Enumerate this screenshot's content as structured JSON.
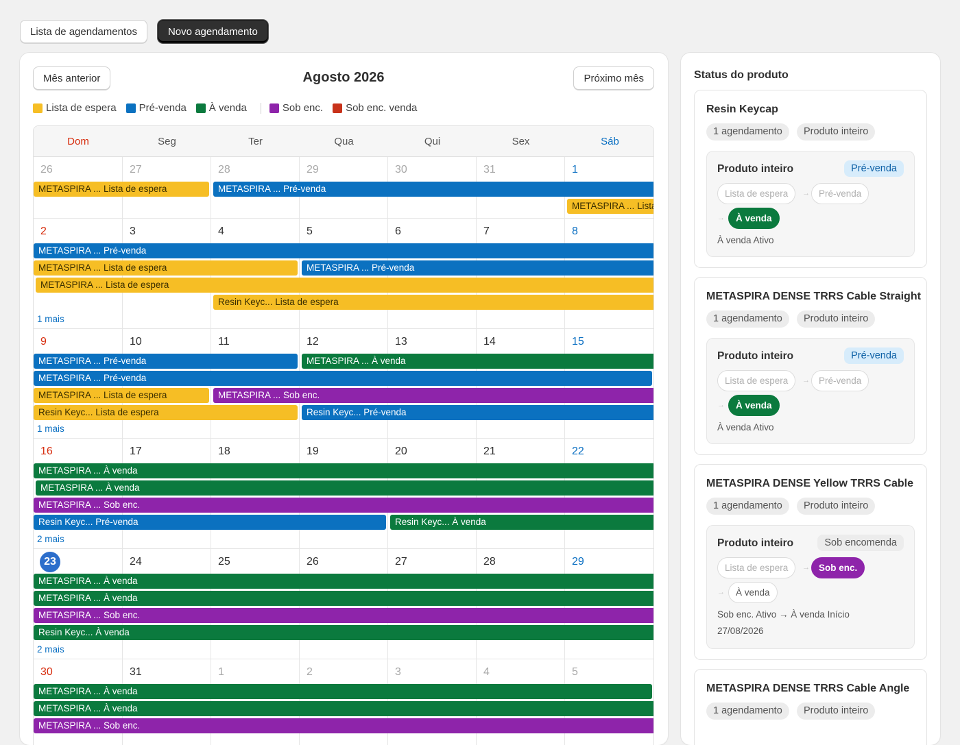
{
  "toolbar": {
    "list_label": "Lista de agendamentos",
    "new_label": "Novo agendamento"
  },
  "calendar": {
    "prev_label": "Mês anterior",
    "next_label": "Próximo mês",
    "month_title": "Agosto 2026",
    "legend": [
      {
        "label": "Lista de espera",
        "color": "#f6be25"
      },
      {
        "label": "Pré-venda",
        "color": "#0b71c0"
      },
      {
        "label": "À venda",
        "color": "#0b7a3e"
      },
      {
        "label": "Sob enc.",
        "color": "#8e24aa"
      },
      {
        "label": "Sob enc. venda",
        "color": "#c8321a"
      }
    ],
    "weekdays": [
      "Dom",
      "Seg",
      "Ter",
      "Qua",
      "Qui",
      "Sex",
      "Sáb"
    ],
    "weeks": [
      {
        "days": [
          {
            "n": "26",
            "muted": true
          },
          {
            "n": "27",
            "muted": true
          },
          {
            "n": "28",
            "muted": true
          },
          {
            "n": "29",
            "muted": true
          },
          {
            "n": "30",
            "muted": true
          },
          {
            "n": "31",
            "muted": true
          },
          {
            "n": "1"
          }
        ],
        "events": [
          {
            "label": "METASPIRA ... Lista de espera",
            "status": "espera"
          },
          {
            "label": "METASPIRA ... Pré-venda",
            "status": "prevenda"
          },
          {
            "label": "METASPIRA ... Lista de espera",
            "status": "espera"
          }
        ],
        "more": ""
      },
      {
        "days": [
          {
            "n": "2"
          },
          {
            "n": "3"
          },
          {
            "n": "4"
          },
          {
            "n": "5"
          },
          {
            "n": "6"
          },
          {
            "n": "7"
          },
          {
            "n": "8"
          }
        ],
        "events": [
          {
            "label": "METASPIRA ... Pré-venda",
            "status": "prevenda"
          },
          {
            "label": "METASPIRA ... Lista de espera",
            "status": "espera"
          },
          {
            "label": "METASPIRA ... Pré-venda",
            "status": "prevenda"
          },
          {
            "label": "METASPIRA ... Lista de espera",
            "status": "espera"
          },
          {
            "label": "Resin Keyc... Lista de espera",
            "status": "espera"
          }
        ],
        "more": "1 mais"
      },
      {
        "days": [
          {
            "n": "9"
          },
          {
            "n": "10"
          },
          {
            "n": "11"
          },
          {
            "n": "12"
          },
          {
            "n": "13"
          },
          {
            "n": "14"
          },
          {
            "n": "15"
          }
        ],
        "events": [
          {
            "label": "METASPIRA ... Pré-venda",
            "status": "prevenda"
          },
          {
            "label": "METASPIRA ... À venda",
            "status": "avenda"
          },
          {
            "label": "METASPIRA ... Pré-venda",
            "status": "prevenda"
          },
          {
            "label": "METASPIRA ... Lista de espera",
            "status": "espera"
          },
          {
            "label": "METASPIRA ... Sob enc.",
            "status": "sobenc"
          },
          {
            "label": "Resin Keyc... Lista de espera",
            "status": "espera"
          },
          {
            "label": "Resin Keyc... Pré-venda",
            "status": "prevenda"
          }
        ],
        "more": "1 mais"
      },
      {
        "days": [
          {
            "n": "16"
          },
          {
            "n": "17"
          },
          {
            "n": "18"
          },
          {
            "n": "19"
          },
          {
            "n": "20"
          },
          {
            "n": "21"
          },
          {
            "n": "22"
          }
        ],
        "events": [
          {
            "label": "METASPIRA ... À venda",
            "status": "avenda"
          },
          {
            "label": "METASPIRA ... À venda",
            "status": "avenda"
          },
          {
            "label": "METASPIRA ... Sob enc.",
            "status": "sobenc"
          },
          {
            "label": "Resin Keyc... Pré-venda",
            "status": "prevenda"
          },
          {
            "label": "Resin Keyc... À venda",
            "status": "avenda"
          }
        ],
        "more": "2 mais"
      },
      {
        "days": [
          {
            "n": "23",
            "today": true
          },
          {
            "n": "24"
          },
          {
            "n": "25"
          },
          {
            "n": "26"
          },
          {
            "n": "27"
          },
          {
            "n": "28"
          },
          {
            "n": "29"
          }
        ],
        "events": [
          {
            "label": "METASPIRA ... À venda",
            "status": "avenda"
          },
          {
            "label": "METASPIRA ... À venda",
            "status": "avenda"
          },
          {
            "label": "METASPIRA ... Sob enc.",
            "status": "sobenc"
          },
          {
            "label": "Resin Keyc... À venda",
            "status": "avenda"
          }
        ],
        "more": "2 mais"
      },
      {
        "days": [
          {
            "n": "30"
          },
          {
            "n": "31"
          },
          {
            "n": "1",
            "muted": true
          },
          {
            "n": "2",
            "muted": true
          },
          {
            "n": "3",
            "muted": true
          },
          {
            "n": "4",
            "muted": true
          },
          {
            "n": "5",
            "muted": true
          }
        ],
        "events": [
          {
            "label": "METASPIRA ... À venda",
            "status": "avenda"
          },
          {
            "label": "METASPIRA ... À venda",
            "status": "avenda"
          },
          {
            "label": "METASPIRA ... Sob enc.",
            "status": "sobenc"
          }
        ],
        "more": ""
      }
    ]
  },
  "status_colors": {
    "espera": "#f6be25",
    "prevenda": "#0b71c0",
    "avenda": "#0b7a3e",
    "sobenc": "#8e24aa",
    "sobencvenda": "#c8321a"
  },
  "sidebar": {
    "title": "Status do produto",
    "products": [
      {
        "name": "Resin Keycap",
        "pills": [
          "1 agendamento",
          "Produto inteiro"
        ],
        "inner_title": "Produto inteiro",
        "badge": "Pré-venda",
        "steps": [
          "Lista de espera",
          "Pré-venda",
          "À venda"
        ],
        "status_lines": [
          "À venda Ativo"
        ]
      },
      {
        "name": "METASPIRA DENSE TRRS Cable Straight",
        "pills": [
          "1 agendamento",
          "Produto inteiro"
        ],
        "inner_title": "Produto inteiro",
        "badge": "Pré-venda",
        "steps": [
          "Lista de espera",
          "Pré-venda",
          "À venda"
        ],
        "status_lines": [
          "À venda Ativo"
        ]
      },
      {
        "name": "METASPIRA DENSE Yellow TRRS Cable",
        "pills": [
          "1 agendamento",
          "Produto inteiro"
        ],
        "inner_title": "Produto inteiro",
        "badge": "Sob encomenda",
        "steps": [
          "Lista de espera",
          "Sob enc.",
          "À venda"
        ],
        "status_lines": [
          "Sob enc. Ativo → À venda Início",
          "27/08/2026"
        ]
      },
      {
        "name": "METASPIRA DENSE TRRS Cable Angle",
        "pills": [
          "1 agendamento",
          "Produto inteiro"
        ]
      }
    ]
  }
}
